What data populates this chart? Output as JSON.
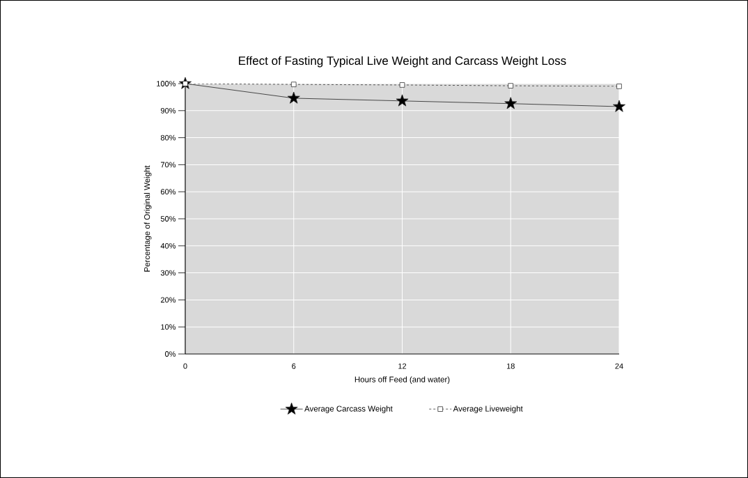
{
  "chart_data": {
    "type": "line",
    "title": "Effect of Fasting Typical Live Weight and Carcass Weight Loss",
    "xlabel": "Hours off Feed (and water)",
    "ylabel": "Percentage of Original Weight",
    "x": [
      0,
      6,
      12,
      18,
      24
    ],
    "series": [
      {
        "name": "Average Carcass Weight",
        "color": "#222222",
        "values": [
          100,
          94.6,
          93.6,
          92.6,
          91.5
        ],
        "marker": "star",
        "line_style": "solid"
      },
      {
        "name": "Average Liveweight",
        "color": "#333333",
        "values": [
          100,
          99.7,
          99.5,
          99.2,
          99.0
        ],
        "marker": "square",
        "line_style": "dashed"
      }
    ],
    "xlim": [
      0,
      24
    ],
    "xticks": [
      0,
      6,
      12,
      18,
      24
    ],
    "ylim": [
      0,
      100
    ],
    "yticks": [
      {
        "value": 0,
        "label": "0%"
      },
      {
        "value": 10,
        "label": "10%"
      },
      {
        "value": 20,
        "label": "20%"
      },
      {
        "value": 30,
        "label": "30%"
      },
      {
        "value": 40,
        "label": "40%"
      },
      {
        "value": 50,
        "label": "50%"
      },
      {
        "value": 60,
        "label": "60%"
      },
      {
        "value": 70,
        "label": "70%"
      },
      {
        "value": 80,
        "label": "80%"
      },
      {
        "value": 90,
        "label": "90%"
      },
      {
        "value": 100,
        "label": "100%"
      }
    ],
    "grid": true,
    "legend": "bottom"
  }
}
